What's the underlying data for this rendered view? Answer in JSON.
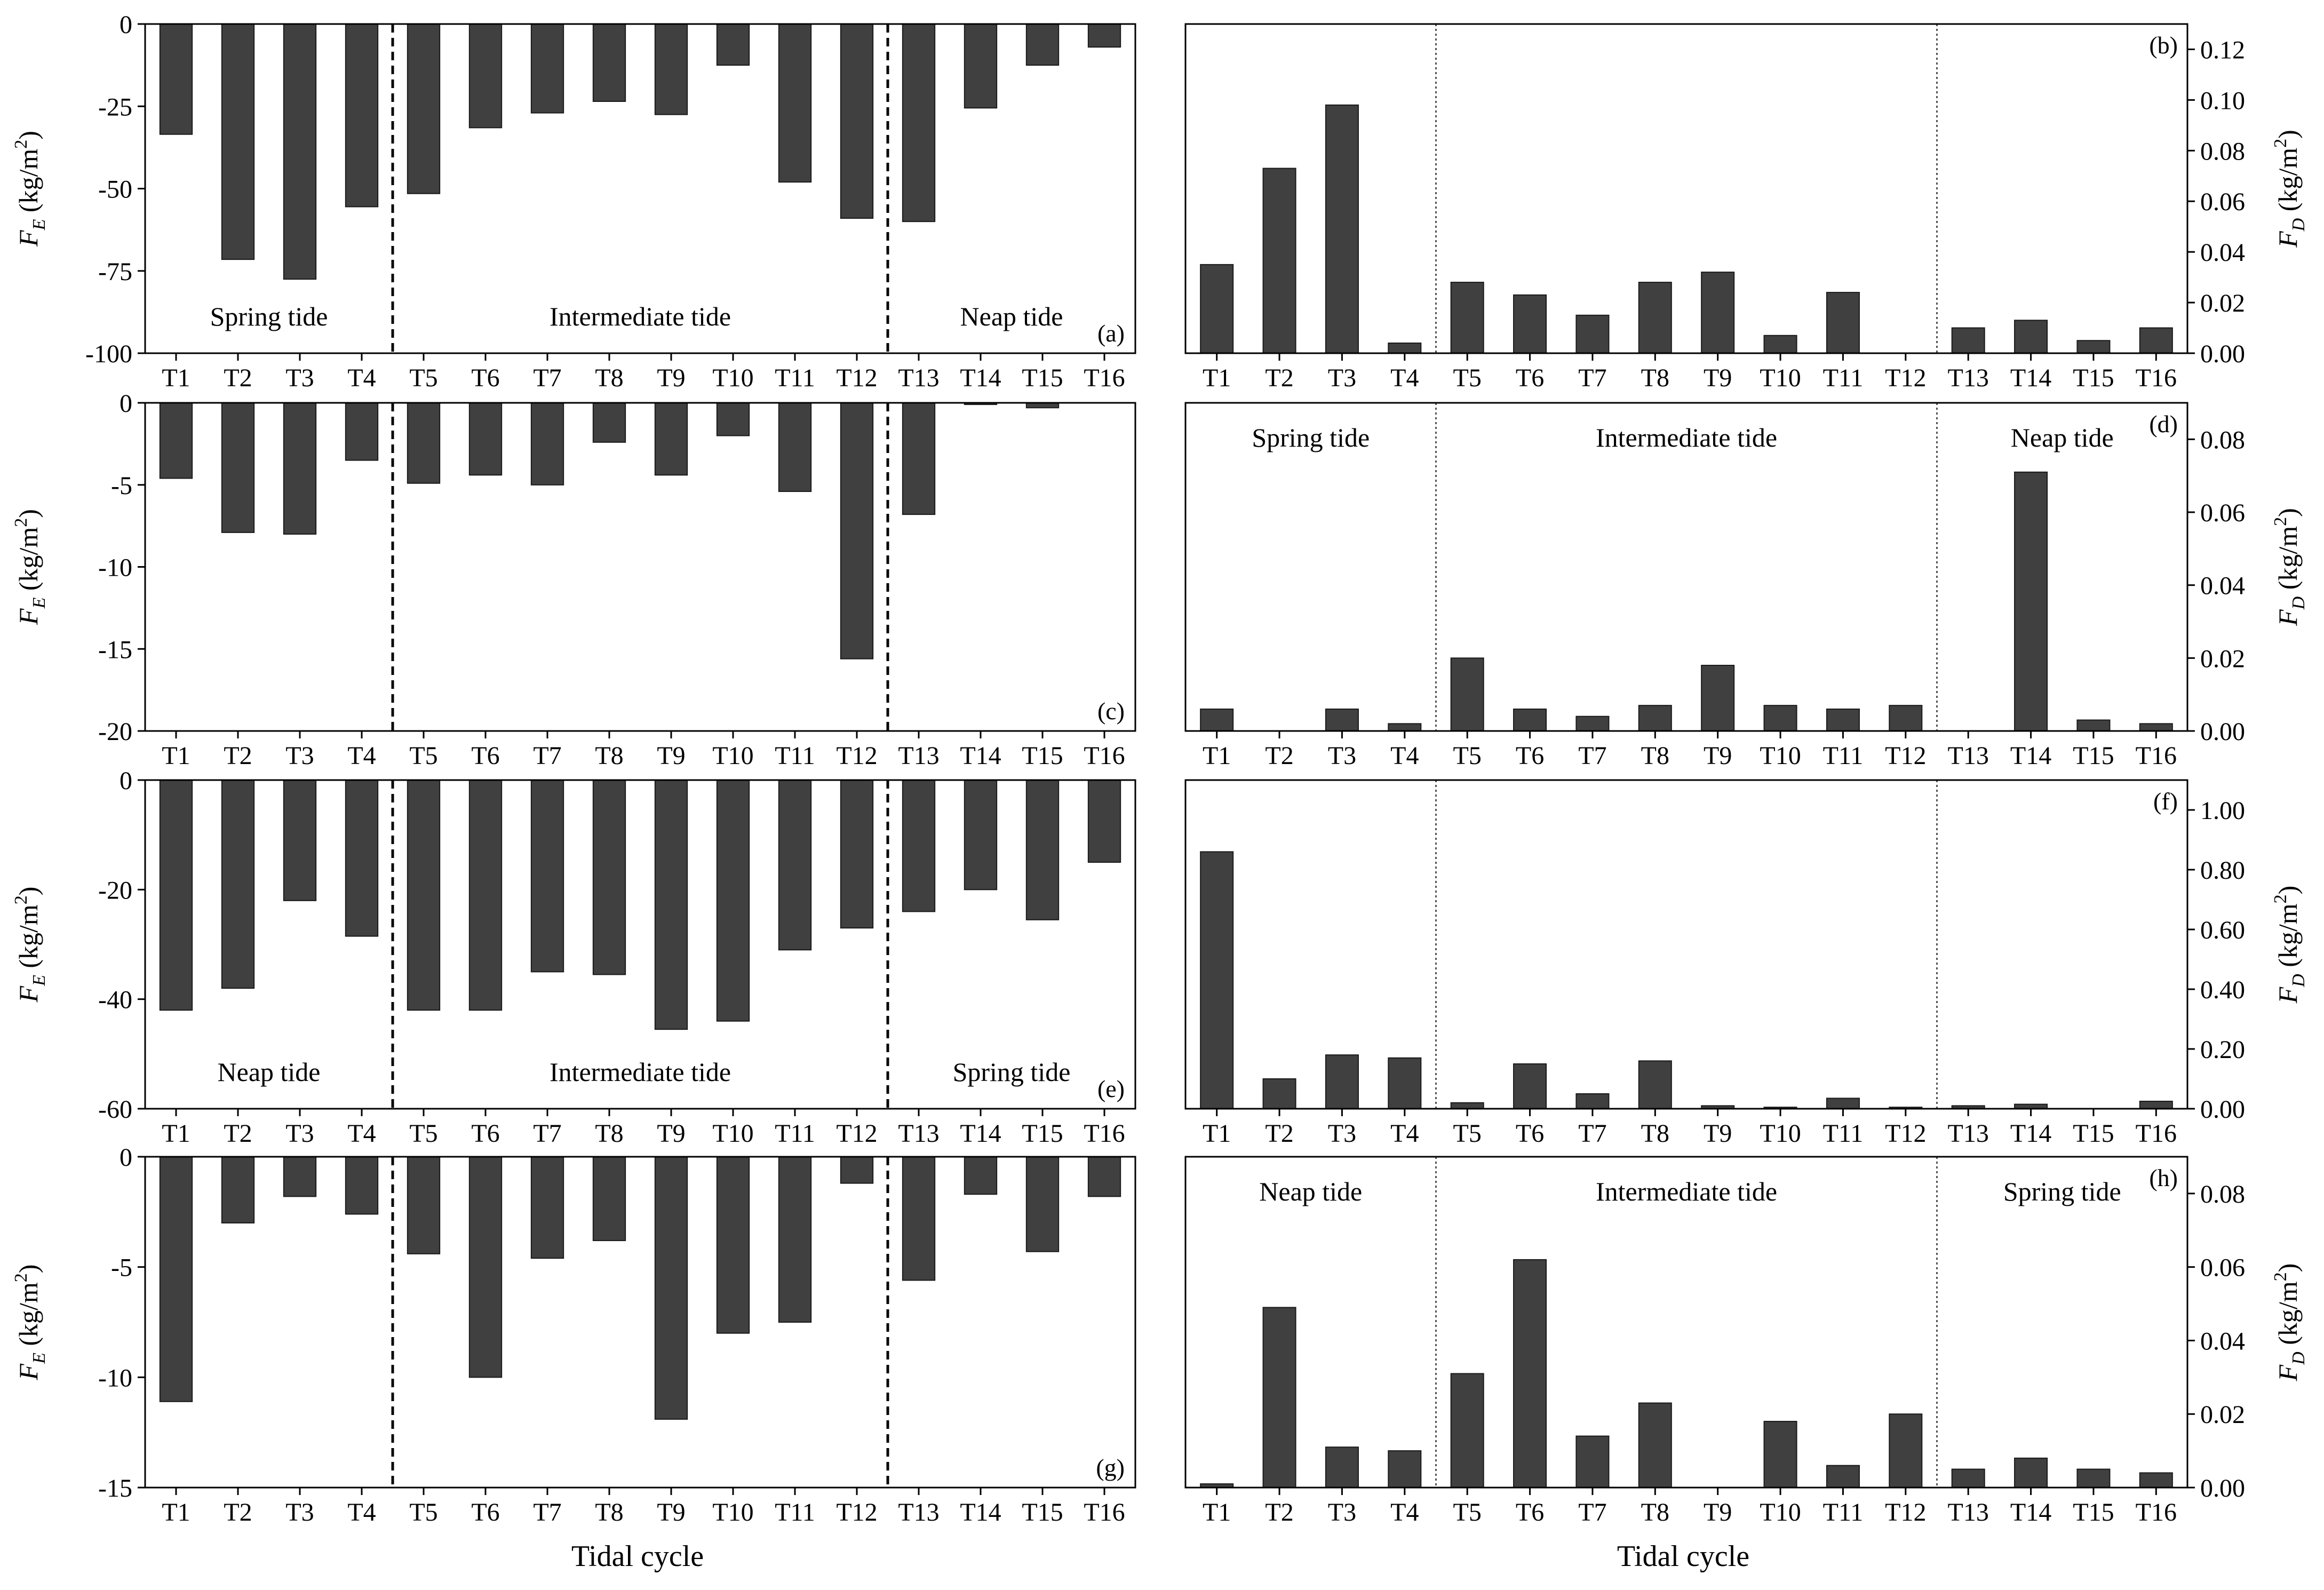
{
  "figure": {
    "left_xlabel": "Tidal cycle",
    "right_xlabel": "Tidal cycle",
    "left_ylabel_sym": "F",
    "left_ylabel_sub": "E",
    "right_ylabel_sym": "F",
    "right_ylabel_sub": "D",
    "ylabel_unit_pre": " (kg/m",
    "ylabel_unit_sup": "2",
    "ylabel_unit_post": ")"
  },
  "colors": {
    "bar": "#404040",
    "axis": "#000000"
  },
  "chart_data": [
    {
      "type": "bar",
      "id": "a",
      "panel_label": "(a)",
      "categories": [
        "T1",
        "T2",
        "T3",
        "T4",
        "T5",
        "T6",
        "T7",
        "T8",
        "T9",
        "T10",
        "T11",
        "T12",
        "T13",
        "T14",
        "T15",
        "T16"
      ],
      "values": [
        -33.5,
        -71.5,
        -77.5,
        -55.5,
        -51.5,
        -31.5,
        -27.0,
        -23.5,
        -27.5,
        -12.5,
        -48.0,
        -59.0,
        -60.0,
        -25.5,
        -12.5,
        -7.0
      ],
      "ylim": [
        -100,
        0
      ],
      "yticks": [
        0,
        -25,
        -50,
        -75,
        -100
      ],
      "ytick_labels": [
        "0",
        "-25",
        "-50",
        "-75",
        "-100"
      ],
      "tide_labels": [
        "Spring tide",
        "Intermediate tide",
        "Neap tide"
      ]
    },
    {
      "type": "bar",
      "id": "b",
      "panel_label": "(b)",
      "categories": [
        "T1",
        "T2",
        "T3",
        "T4",
        "T5",
        "T6",
        "T7",
        "T8",
        "T9",
        "T10",
        "T11",
        "T12",
        "T13",
        "T14",
        "T15",
        "T16"
      ],
      "values": [
        0.035,
        0.073,
        0.098,
        0.004,
        0.028,
        0.023,
        0.015,
        0.028,
        0.032,
        0.007,
        0.024,
        0.0,
        0.01,
        0.013,
        0.005,
        0.01
      ],
      "ylim": [
        0,
        0.13
      ],
      "yticks": [
        0,
        0.02,
        0.04,
        0.06,
        0.08,
        0.1,
        0.12
      ],
      "ytick_labels": [
        "0.00",
        "0.02",
        "0.04",
        "0.06",
        "0.08",
        "0.10",
        "0.12"
      ],
      "tide_labels": []
    },
    {
      "type": "bar",
      "id": "c",
      "panel_label": "(c)",
      "categories": [
        "T1",
        "T2",
        "T3",
        "T4",
        "T5",
        "T6",
        "T7",
        "T8",
        "T9",
        "T10",
        "T11",
        "T12",
        "T13",
        "T14",
        "T15",
        "T16"
      ],
      "values": [
        -4.6,
        -7.9,
        -8.0,
        -3.5,
        -4.9,
        -4.4,
        -5.0,
        -2.4,
        -4.4,
        -2.0,
        -5.4,
        -15.6,
        -6.8,
        -0.1,
        -0.3,
        0.0
      ],
      "ylim": [
        -20,
        0
      ],
      "yticks": [
        0,
        -5,
        -10,
        -15,
        -20
      ],
      "ytick_labels": [
        "0",
        "-5",
        "-10",
        "-15",
        "-20"
      ],
      "tide_labels": []
    },
    {
      "type": "bar",
      "id": "d",
      "panel_label": "(d)",
      "categories": [
        "T1",
        "T2",
        "T3",
        "T4",
        "T5",
        "T6",
        "T7",
        "T8",
        "T9",
        "T10",
        "T11",
        "T12",
        "T13",
        "T14",
        "T15",
        "T16"
      ],
      "values": [
        0.006,
        0.0,
        0.006,
        0.002,
        0.02,
        0.006,
        0.004,
        0.007,
        0.018,
        0.007,
        0.006,
        0.007,
        0.0,
        0.071,
        0.003,
        0.002
      ],
      "ylim": [
        0,
        0.09
      ],
      "yticks": [
        0,
        0.02,
        0.04,
        0.06,
        0.08
      ],
      "ytick_labels": [
        "0.00",
        "0.02",
        "0.04",
        "0.06",
        "0.08"
      ],
      "tide_labels": [
        "Spring tide",
        "Intermediate tide",
        "Neap tide"
      ]
    },
    {
      "type": "bar",
      "id": "e",
      "panel_label": "(e)",
      "categories": [
        "T1",
        "T2",
        "T3",
        "T4",
        "T5",
        "T6",
        "T7",
        "T8",
        "T9",
        "T10",
        "T11",
        "T12",
        "T13",
        "T14",
        "T15",
        "T16"
      ],
      "values": [
        -42.0,
        -38.0,
        -22.0,
        -28.5,
        -42.0,
        -42.0,
        -35.0,
        -35.5,
        -45.5,
        -44.0,
        -31.0,
        -27.0,
        -24.0,
        -20.0,
        -25.5,
        -15.0
      ],
      "ylim": [
        -60,
        0
      ],
      "yticks": [
        0,
        -20,
        -40,
        -60
      ],
      "ytick_labels": [
        "0",
        "-20",
        "-40",
        "-60"
      ],
      "tide_labels": [
        "Neap tide",
        "Intermediate tide",
        "Spring tide"
      ]
    },
    {
      "type": "bar",
      "id": "f",
      "panel_label": "(f)",
      "categories": [
        "T1",
        "T2",
        "T3",
        "T4",
        "T5",
        "T6",
        "T7",
        "T8",
        "T9",
        "T10",
        "T11",
        "T12",
        "T13",
        "T14",
        "T15",
        "T16"
      ],
      "values": [
        0.86,
        0.1,
        0.18,
        0.17,
        0.02,
        0.15,
        0.05,
        0.16,
        0.01,
        0.005,
        0.035,
        0.005,
        0.01,
        0.015,
        0.0,
        0.025
      ],
      "ylim": [
        0,
        1.1
      ],
      "yticks": [
        0,
        0.2,
        0.4,
        0.6,
        0.8,
        1.0
      ],
      "ytick_labels": [
        "0.00",
        "0.20",
        "0.40",
        "0.60",
        "0.80",
        "1.00"
      ],
      "tide_labels": []
    },
    {
      "type": "bar",
      "id": "g",
      "panel_label": "(g)",
      "categories": [
        "T1",
        "T2",
        "T3",
        "T4",
        "T5",
        "T6",
        "T7",
        "T8",
        "T9",
        "T10",
        "T11",
        "T12",
        "T13",
        "T14",
        "T15",
        "T16"
      ],
      "values": [
        -11.1,
        -3.0,
        -1.8,
        -2.6,
        -4.4,
        -10.0,
        -4.6,
        -3.8,
        -11.9,
        -8.0,
        -7.5,
        -1.2,
        -5.6,
        -1.7,
        -4.3,
        -1.8
      ],
      "ylim": [
        -15,
        0
      ],
      "yticks": [
        0,
        -5,
        -10,
        -15
      ],
      "ytick_labels": [
        "0",
        "-5",
        "-10",
        "-15"
      ],
      "tide_labels": []
    },
    {
      "type": "bar",
      "id": "h",
      "panel_label": "(h)",
      "categories": [
        "T1",
        "T2",
        "T3",
        "T4",
        "T5",
        "T6",
        "T7",
        "T8",
        "T9",
        "T10",
        "T11",
        "T12",
        "T13",
        "T14",
        "T15",
        "T16"
      ],
      "values": [
        0.001,
        0.049,
        0.011,
        0.01,
        0.031,
        0.062,
        0.014,
        0.023,
        0.0,
        0.018,
        0.006,
        0.02,
        0.005,
        0.008,
        0.005,
        0.004
      ],
      "ylim": [
        0,
        0.09
      ],
      "yticks": [
        0,
        0.02,
        0.04,
        0.06,
        0.08
      ],
      "ytick_labels": [
        "0.00",
        "0.02",
        "0.04",
        "0.06",
        "0.08"
      ],
      "tide_labels": [
        "Neap tide",
        "Intermediate tide",
        "Spring tide"
      ]
    }
  ]
}
